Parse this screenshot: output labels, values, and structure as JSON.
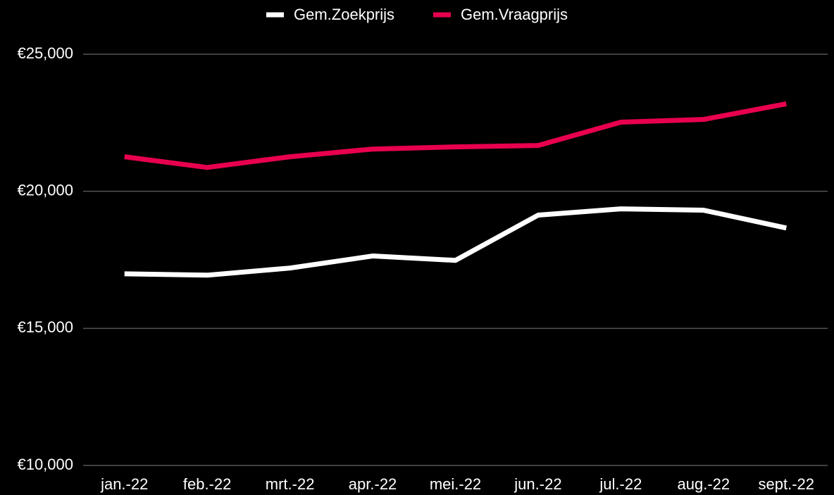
{
  "chart_data": {
    "type": "line",
    "categories": [
      "jan.-22",
      "feb.-22",
      "mrt.-22",
      "apr.-22",
      "mei.-22",
      "jun.-22",
      "jul.-22",
      "aug.-22",
      "sept.-22"
    ],
    "series": [
      {
        "name": "Gem.Zoekprijs",
        "color": "#ffffff",
        "values": [
          16990,
          16940,
          17200,
          17640,
          17480,
          19130,
          19360,
          19310,
          18660
        ]
      },
      {
        "name": "Gem.Vraagprijs",
        "color": "#e8004f",
        "values": [
          21260,
          20870,
          21260,
          21540,
          21620,
          21670,
          22520,
          22620,
          23190
        ]
      }
    ],
    "ylim": [
      10000,
      25000
    ],
    "yticks": [
      {
        "value": 10000,
        "label": "€10,000"
      },
      {
        "value": 15000,
        "label": "€15,000"
      },
      {
        "value": 20000,
        "label": "€20,000"
      },
      {
        "value": 25000,
        "label": "€25,000"
      }
    ],
    "grid": true,
    "legend": "top"
  }
}
